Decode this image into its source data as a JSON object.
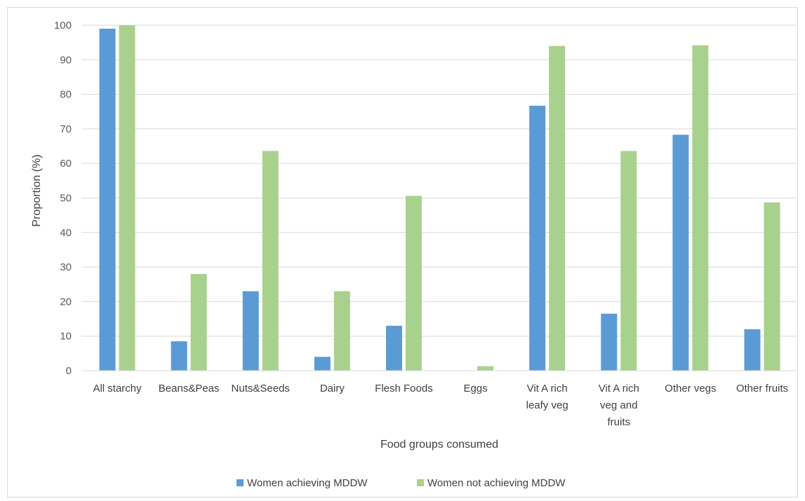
{
  "chart_data": {
    "type": "bar",
    "xlabel": "Food groups consumed",
    "ylabel": "Proportion (%)",
    "ylim": [
      0,
      100
    ],
    "yticks": [
      0,
      10,
      20,
      30,
      40,
      50,
      60,
      70,
      80,
      90,
      100
    ],
    "grid": true,
    "legend_position": "bottom",
    "categories": [
      [
        "All starchy"
      ],
      [
        "Beans&Peas"
      ],
      [
        "Nuts&Seeds"
      ],
      [
        "Dairy"
      ],
      [
        "Flesh Foods"
      ],
      [
        "Eggs"
      ],
      [
        "Vit A rich",
        "leafy veg"
      ],
      [
        "Vit A rich",
        "veg and",
        "fruits"
      ],
      [
        "Other vegs"
      ],
      [
        "Other fruits"
      ]
    ],
    "series": [
      {
        "name": "Women achieving MDDW",
        "color": "#5b9bd5",
        "values": [
          99,
          8.5,
          23,
          4,
          13,
          0,
          76.7,
          16.5,
          68.3,
          12
        ]
      },
      {
        "name": "Women not achieving MDDW",
        "color": "#a9d18e",
        "values": [
          100,
          28,
          63.6,
          23,
          50.6,
          1.3,
          94,
          63.6,
          94.2,
          48.7
        ]
      }
    ]
  }
}
